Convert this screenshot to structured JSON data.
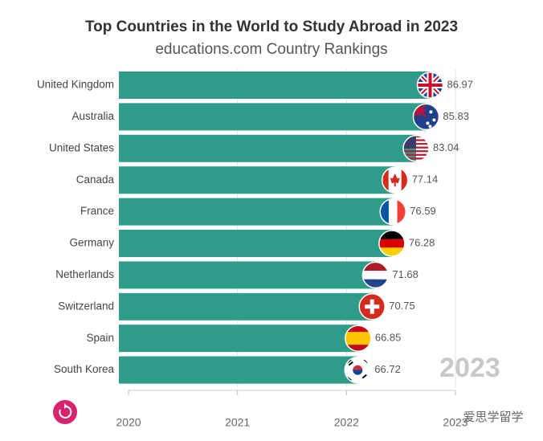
{
  "chart_data": {
    "type": "bar",
    "orientation": "horizontal",
    "title": "Top Countries in the World to Study Abroad in 2023",
    "subtitle": "educations.com Country Rankings",
    "categories": [
      "United Kingdom",
      "Australia",
      "United States",
      "Canada",
      "France",
      "Germany",
      "Netherlands",
      "Switzerland",
      "Spain",
      "South Korea"
    ],
    "values": [
      86.97,
      85.83,
      83.04,
      77.14,
      76.59,
      76.28,
      71.68,
      70.75,
      66.85,
      66.72
    ],
    "color": "#2e9c88",
    "xlim": [
      0,
      90
    ],
    "period": "2023",
    "timeline_lim": [
      2020,
      2023
    ],
    "timeline_ticks": [
      2020,
      2021,
      2022,
      2023
    ],
    "grid": true,
    "watermark": "爱思学留学"
  }
}
